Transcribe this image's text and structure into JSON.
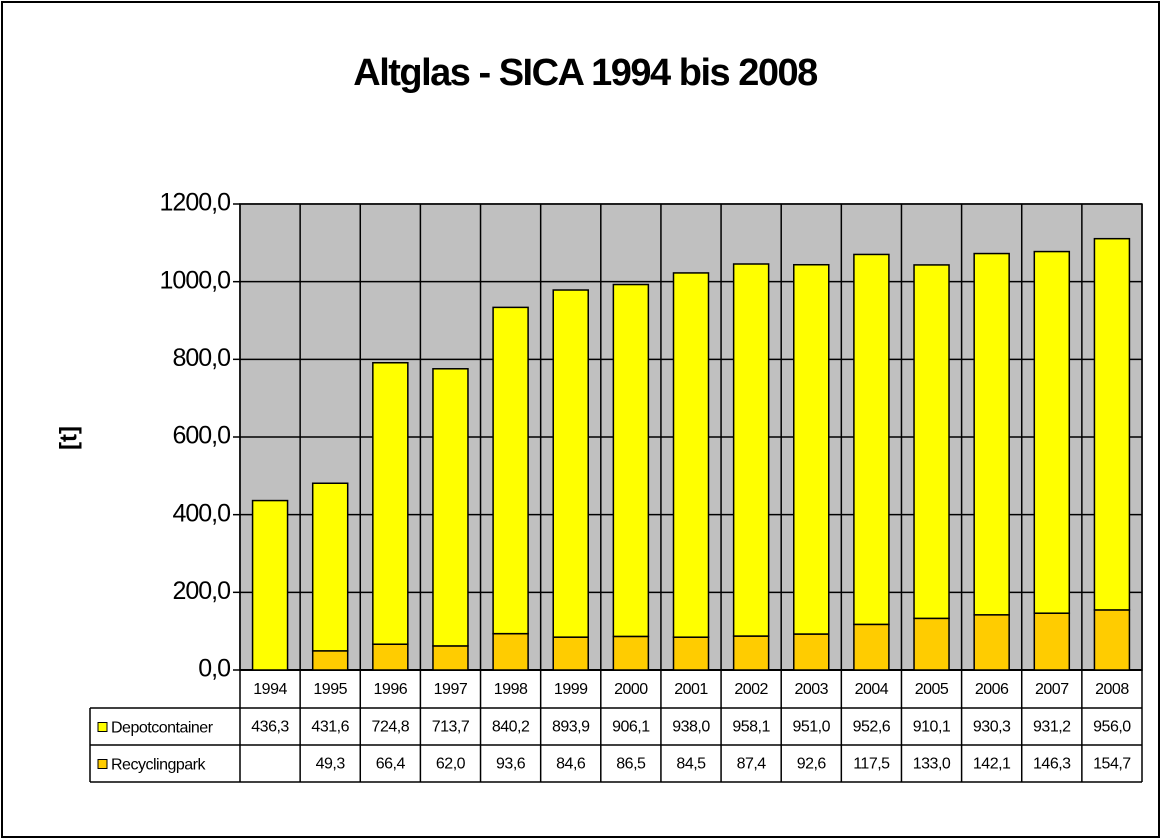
{
  "chart_data": {
    "type": "bar",
    "stacked": true,
    "title": "Altglas - SICA 1994 bis 2008",
    "y_label": "[t]",
    "categories": [
      "1994",
      "1995",
      "1996",
      "1997",
      "1998",
      "1999",
      "2000",
      "2001",
      "2002",
      "2003",
      "2004",
      "2005",
      "2006",
      "2007",
      "2008"
    ],
    "series": [
      {
        "name": "Recyclingpark",
        "color": "#ffcc00",
        "values": [
          null,
          49.3,
          66.4,
          62.0,
          93.6,
          84.6,
          86.5,
          84.5,
          87.4,
          92.6,
          117.5,
          133.0,
          142.1,
          146.3,
          154.7
        ],
        "value_labels": [
          null,
          "49,3",
          "66,4",
          "62,0",
          "93,6",
          "84,6",
          "86,5",
          "84,5",
          "87,4",
          "92,6",
          "117,5",
          "133,0",
          "142,1",
          "146,3",
          "154,7"
        ]
      },
      {
        "name": "Depotcontainer",
        "color": "#ffff00",
        "values": [
          436.3,
          431.6,
          724.8,
          713.7,
          840.2,
          893.9,
          906.1,
          938.0,
          958.1,
          951.0,
          952.6,
          910.1,
          930.3,
          931.2,
          956.0
        ],
        "value_labels": [
          "436,3",
          "431,6",
          "724,8",
          "713,7",
          "840,2",
          "893,9",
          "906,1",
          "938,0",
          "958,1",
          "951,0",
          "952,6",
          "910,1",
          "930,3",
          "931,2",
          "956,0"
        ]
      }
    ],
    "ylim": [
      0,
      1200
    ],
    "yticks": [
      {
        "value": 0,
        "label": "0,0"
      },
      {
        "value": 200,
        "label": "200,0"
      },
      {
        "value": 400,
        "label": "400,0"
      },
      {
        "value": 600,
        "label": "600,0"
      },
      {
        "value": 800,
        "label": "800,0"
      },
      {
        "value": 1000,
        "label": "1000,0"
      },
      {
        "value": 1200,
        "label": "1200,0"
      }
    ],
    "grid": true,
    "plot_background": "#c0c0c0",
    "data_table": true
  }
}
